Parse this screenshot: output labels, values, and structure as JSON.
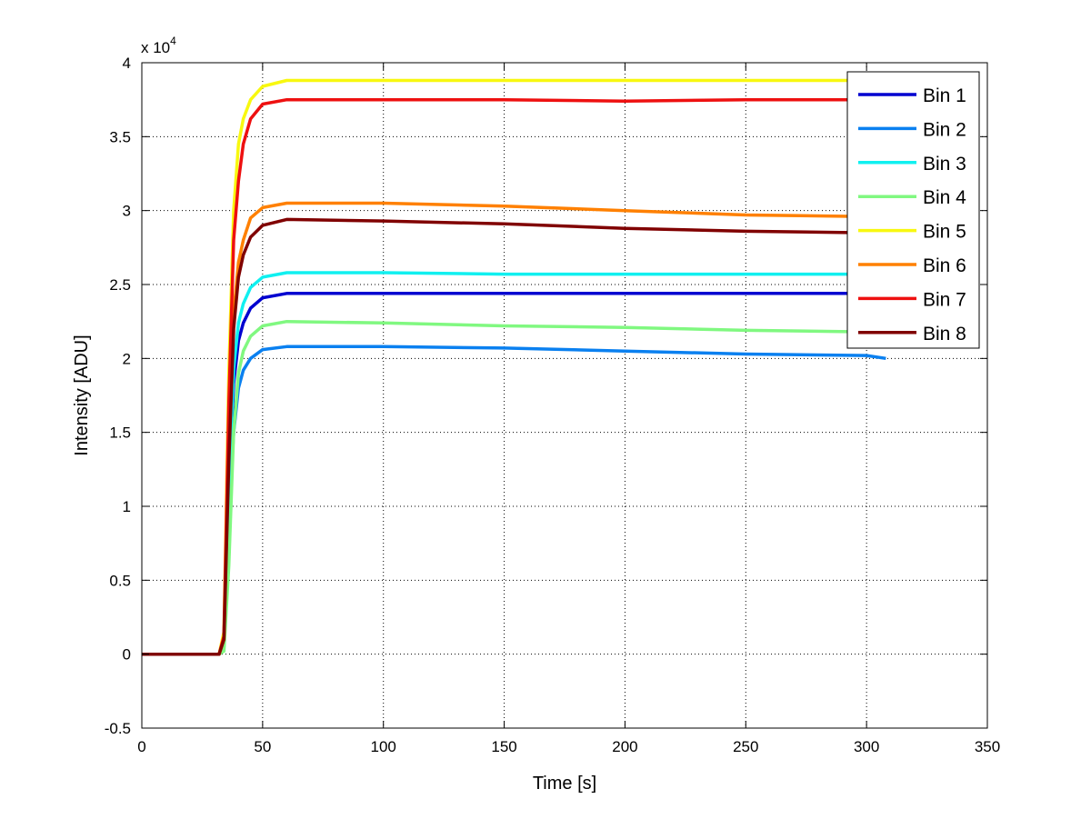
{
  "chart_data": {
    "type": "line",
    "title": "",
    "xlabel": "Time [s]",
    "ylabel": "Intensity [ADU]",
    "y_multiplier_label": "x 10",
    "y_multiplier_exponent": "4",
    "xlim": [
      0,
      350
    ],
    "ylim": [
      -0.5,
      4
    ],
    "xticks": [
      0,
      50,
      100,
      150,
      200,
      250,
      300,
      350
    ],
    "xtick_labels": [
      "0",
      "50",
      "100",
      "150",
      "200",
      "250",
      "300",
      "350"
    ],
    "yticks": [
      -0.5,
      0,
      0.5,
      1,
      1.5,
      2,
      2.5,
      3,
      3.5,
      4
    ],
    "ytick_labels": [
      "-0.5",
      "0",
      "0.5",
      "1",
      "1.5",
      "2",
      "2.5",
      "3",
      "3.5",
      "4"
    ],
    "grid": true,
    "legend_position": "top-right",
    "x": [
      0,
      32,
      34,
      36,
      38,
      40,
      42,
      45,
      50,
      60,
      100,
      150,
      200,
      250,
      300,
      308
    ],
    "series": [
      {
        "name": "Bin 1",
        "color": "#0000d0",
        "values": [
          0,
          0,
          0.07,
          1.1,
          1.83,
          2.12,
          2.24,
          2.34,
          2.41,
          2.44,
          2.44,
          2.44,
          2.44,
          2.44,
          2.44,
          2.44
        ]
      },
      {
        "name": "Bin 2",
        "color": "#0a80f0",
        "values": [
          0,
          0,
          0.05,
          0.9,
          1.5,
          1.8,
          1.92,
          2.0,
          2.06,
          2.08,
          2.08,
          2.07,
          2.05,
          2.03,
          2.02,
          2.0
        ]
      },
      {
        "name": "Bin 3",
        "color": "#10f0f0",
        "values": [
          0,
          0,
          0.07,
          1.15,
          1.93,
          2.24,
          2.37,
          2.48,
          2.55,
          2.58,
          2.58,
          2.57,
          2.57,
          2.57,
          2.57,
          2.57
        ]
      },
      {
        "name": "Bin 4",
        "color": "#80f880",
        "values": [
          0,
          0,
          0.02,
          0.6,
          1.5,
          1.9,
          2.05,
          2.15,
          2.22,
          2.25,
          2.24,
          2.22,
          2.21,
          2.19,
          2.18,
          2.18
        ]
      },
      {
        "name": "Bin 5",
        "color": "#f8f810",
        "values": [
          0,
          0,
          0.15,
          1.9,
          3.0,
          3.45,
          3.62,
          3.75,
          3.84,
          3.88,
          3.88,
          3.88,
          3.88,
          3.88,
          3.88,
          3.88
        ]
      },
      {
        "name": "Bin 6",
        "color": "#ff8000",
        "values": [
          0,
          0,
          0.1,
          1.4,
          2.3,
          2.65,
          2.8,
          2.95,
          3.02,
          3.05,
          3.05,
          3.03,
          3.0,
          2.97,
          2.96,
          2.96
        ]
      },
      {
        "name": "Bin 7",
        "color": "#ee1010",
        "values": [
          0,
          0,
          0.12,
          1.7,
          2.8,
          3.2,
          3.45,
          3.62,
          3.72,
          3.75,
          3.75,
          3.75,
          3.74,
          3.75,
          3.75,
          3.75
        ]
      },
      {
        "name": "Bin 8",
        "color": "#800000",
        "values": [
          0,
          0,
          0.1,
          1.3,
          2.2,
          2.55,
          2.7,
          2.82,
          2.9,
          2.94,
          2.93,
          2.91,
          2.88,
          2.86,
          2.85,
          2.85
        ]
      }
    ]
  }
}
